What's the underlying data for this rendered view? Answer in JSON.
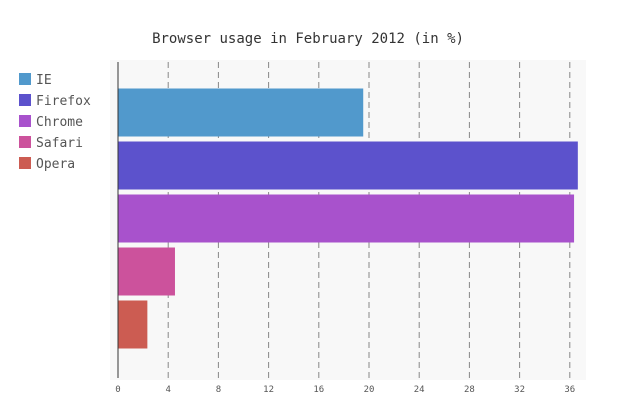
{
  "chart_data": {
    "type": "bar",
    "orientation": "horizontal",
    "title": "Browser usage in February 2012 (in %)",
    "xlabel": "",
    "ylabel": "",
    "xlim": [
      0,
      37
    ],
    "x_ticks": [
      "0",
      "4",
      "8",
      "12",
      "16",
      "20",
      "24",
      "28",
      "32",
      "36"
    ],
    "x_tick_values": [
      0,
      4,
      8,
      12,
      16,
      20,
      24,
      28,
      32,
      36
    ],
    "grid": "vertical-dashed",
    "legend_position": "top-left",
    "series": [
      {
        "name": "IE",
        "value": 19.5,
        "color": "#5199cc"
      },
      {
        "name": "Firefox",
        "value": 36.6,
        "color": "#5c52cc"
      },
      {
        "name": "Chrome",
        "value": 36.3,
        "color": "#a852cc"
      },
      {
        "name": "Safari",
        "value": 4.5,
        "color": "#cc529c"
      },
      {
        "name": "Opera",
        "value": 2.3,
        "color": "#cc5c52"
      }
    ]
  }
}
